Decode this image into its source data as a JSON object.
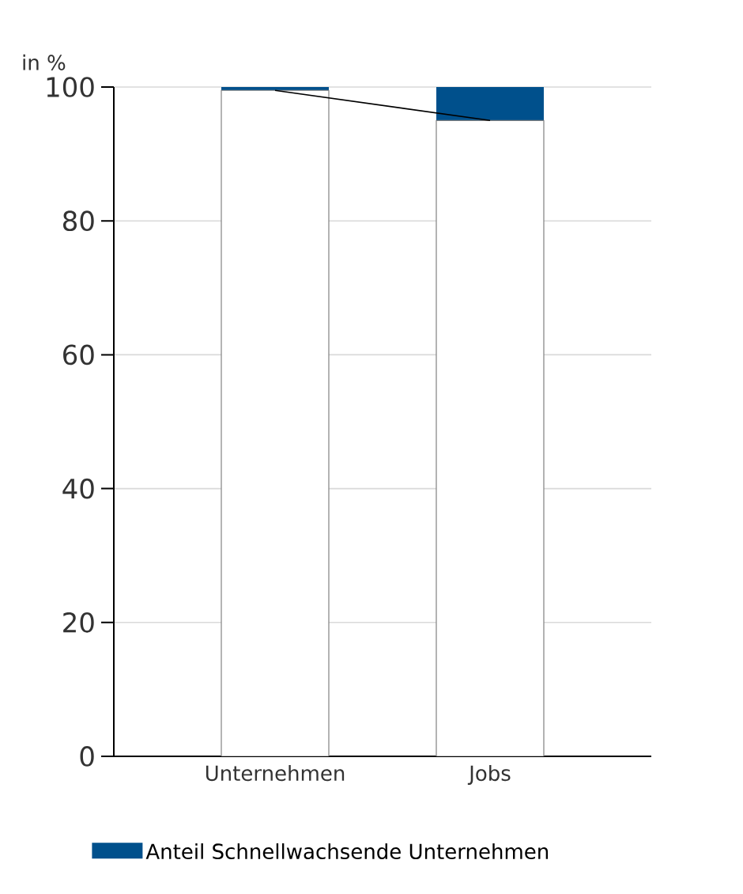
{
  "chart_data": {
    "type": "bar",
    "stacked": true,
    "ylabel": "in %",
    "categories": [
      "Unternehmen",
      "Jobs"
    ],
    "series": [
      {
        "color": "#ffffff",
        "values": [
          99.5,
          95
        ]
      },
      {
        "name": "Anteil Schnellwachsende Unternehmen",
        "color": "#00508c",
        "values": [
          0.5,
          5
        ]
      },
      {
        "type": "line",
        "color": "#000000",
        "values": [
          99.5,
          95
        ]
      }
    ],
    "ylim": [
      0,
      100
    ],
    "yticks": [
      0,
      20,
      40,
      60,
      80,
      100
    ],
    "grid": "y",
    "legend": "bottom left"
  }
}
